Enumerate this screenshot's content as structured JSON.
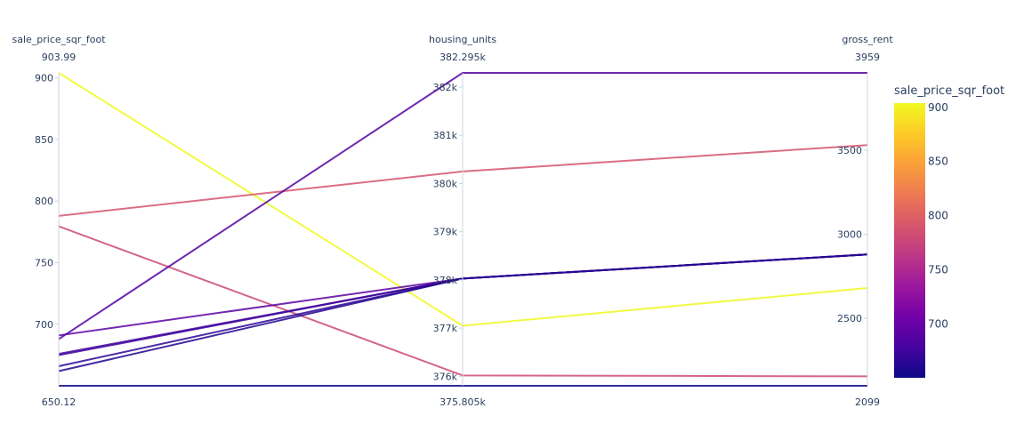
{
  "chart_data": {
    "type": "parcoords",
    "dimensions": [
      {
        "label": "sale_price_sqr_foot",
        "range": [
          650.12,
          903.99
        ],
        "range_labels": {
          "max": "903.99",
          "min": "650.12"
        },
        "ticks": [
          {
            "value": 700,
            "label": "700"
          },
          {
            "value": 750,
            "label": "750"
          },
          {
            "value": 800,
            "label": "800"
          },
          {
            "value": 850,
            "label": "850"
          },
          {
            "value": 900,
            "label": "900"
          }
        ]
      },
      {
        "label": "housing_units",
        "range": [
          375805,
          382295
        ],
        "range_labels": {
          "max": "382.295k",
          "min": "375.805k"
        },
        "ticks": [
          {
            "value": 376000,
            "label": "376k"
          },
          {
            "value": 377000,
            "label": "377k"
          },
          {
            "value": 378000,
            "label": "378k"
          },
          {
            "value": 379000,
            "label": "379k"
          },
          {
            "value": 380000,
            "label": "380k"
          },
          {
            "value": 381000,
            "label": "381k"
          },
          {
            "value": 382000,
            "label": "382k"
          }
        ]
      },
      {
        "label": "gross_rent",
        "range": [
          2099,
          3959
        ],
        "range_labels": {
          "max": "3959",
          "min": "2099"
        },
        "ticks": [
          {
            "value": 2500,
            "label": "2500"
          },
          {
            "value": 3000,
            "label": "3000"
          },
          {
            "value": 3500,
            "label": "3500"
          }
        ]
      }
    ],
    "records": [
      {
        "sale_price_sqr_foot": 903.99,
        "housing_units": 377050,
        "gross_rent": 2680
      },
      {
        "sale_price_sqr_foot": 788.0,
        "housing_units": 380250,
        "gross_rent": 3530
      },
      {
        "sale_price_sqr_foot": 779.5,
        "housing_units": 376020,
        "gross_rent": 2155
      },
      {
        "sale_price_sqr_foot": 688.0,
        "housing_units": 382295,
        "gross_rent": 3959
      },
      {
        "sale_price_sqr_foot": 691.0,
        "housing_units": 378030,
        "gross_rent": 2880
      },
      {
        "sale_price_sqr_foot": 676.0,
        "housing_units": 378030,
        "gross_rent": 2880
      },
      {
        "sale_price_sqr_foot": 675.0,
        "housing_units": 378030,
        "gross_rent": 2880
      },
      {
        "sale_price_sqr_foot": 666.0,
        "housing_units": 378030,
        "gross_rent": 2880
      },
      {
        "sale_price_sqr_foot": 662.0,
        "housing_units": 378030,
        "gross_rent": 2880
      },
      {
        "sale_price_sqr_foot": 650.12,
        "housing_units": 375805,
        "gross_rent": 2099
      }
    ],
    "colorbar": {
      "title": "sale_price_sqr_foot",
      "range": [
        650.12,
        903.99
      ],
      "colorscale": [
        "#0d0887",
        "#46039f",
        "#7201a8",
        "#9c179e",
        "#bd3786",
        "#d8576b",
        "#ed7953",
        "#fb9f3a",
        "#fdca26",
        "#f0f921"
      ],
      "ticks": [
        {
          "value": 700,
          "label": "700"
        },
        {
          "value": 750,
          "label": "750"
        },
        {
          "value": 800,
          "label": "800"
        },
        {
          "value": 850,
          "label": "850"
        },
        {
          "value": 900,
          "label": "900"
        }
      ]
    }
  }
}
